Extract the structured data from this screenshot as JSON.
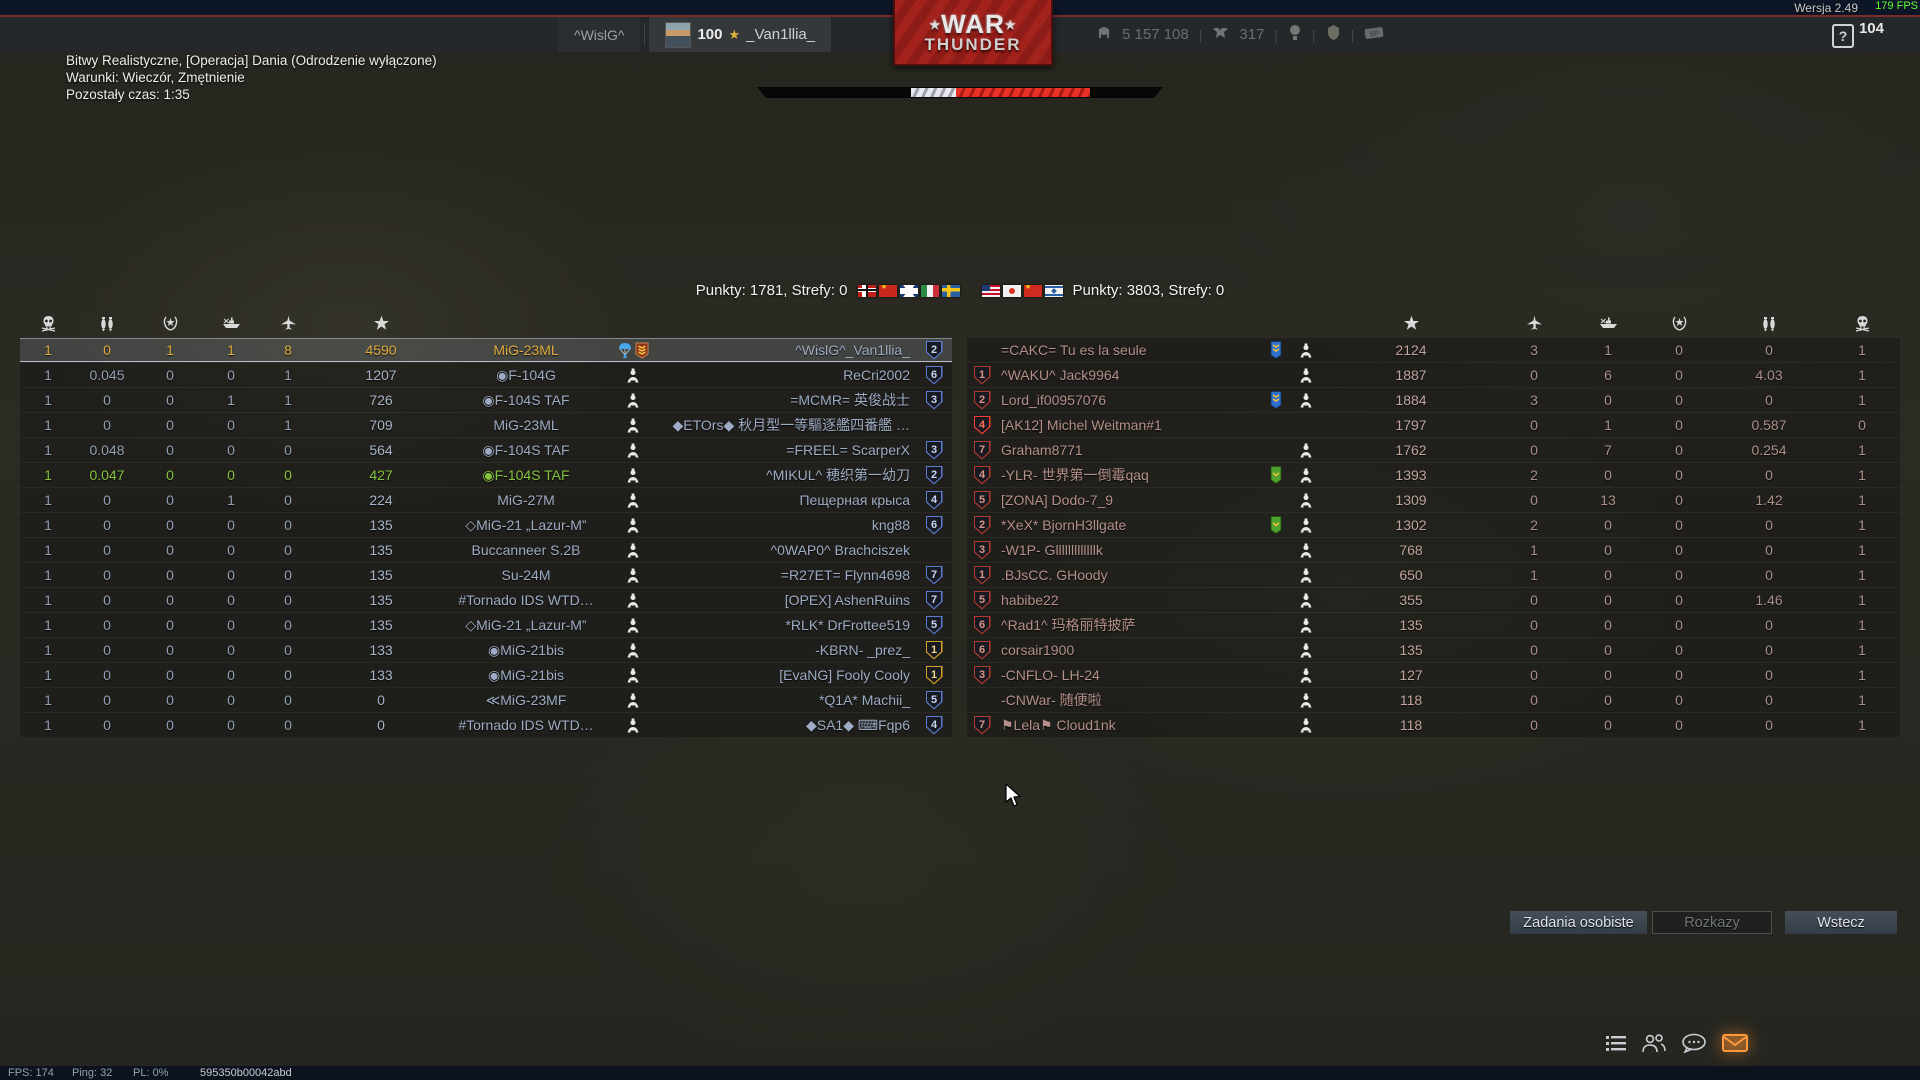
{
  "topbar": {
    "version_label": "Wersja 2.49",
    "fps_overlay": "179 FPS",
    "counter": "104",
    "clan_tab": "^WislG^",
    "player_level": "100",
    "player_name": "_Van1llia_",
    "silver_lions": "5 157 108",
    "golden_eagles": "317",
    "help_label": "?"
  },
  "logo": {
    "war": "WAR",
    "thunder": "THUNDER"
  },
  "mission": {
    "title": "Bitwy Realistyczne, [Operacja] Dania (Odrodzenie wyłączone)",
    "conditions": "Warunki: Wieczór, Zmętnienie",
    "time_left": "Pozostały czas: 1:35"
  },
  "score_line": {
    "left_score": "Punkty: 1781, Strefy: 0",
    "right_score": "Punkty: 3803, Strefy: 0",
    "left_flags": [
      "germany",
      "ussr",
      "uk",
      "italy",
      "sweden"
    ],
    "right_flags": [
      "usa",
      "japan",
      "china",
      "israel"
    ]
  },
  "battle_bar": {
    "white_from_pct": 38,
    "white_width_pct": 11,
    "red_from_pct": 49,
    "red_width_pct": 33
  },
  "left_table": {
    "columns": [
      "deaths",
      "bomb-tonnage",
      "ground-kills",
      "naval-kills",
      "air-kills",
      "score",
      "vehicle",
      "status",
      "player",
      "rank"
    ],
    "rows": [
      {
        "deaths": "1",
        "bombs": "0",
        "ground": "1",
        "naval": "1",
        "air": "8",
        "score": "4590",
        "vehicle": "MiG-23ML",
        "status": "parachute-medal",
        "name": "^WislG^_Van1llia_",
        "rank": "2",
        "rank_style": "blue",
        "row_style": "self"
      },
      {
        "deaths": "1",
        "bombs": "0.045",
        "ground": "0",
        "naval": "0",
        "air": "1",
        "score": "1207",
        "vehicle": "◉F-104G",
        "status": "crew",
        "name": "ReCri2002",
        "rank": "6",
        "rank_style": "blue",
        "row_style": "ally"
      },
      {
        "deaths": "1",
        "bombs": "0",
        "ground": "0",
        "naval": "1",
        "air": "1",
        "score": "726",
        "vehicle": "◉F-104S TAF",
        "status": "crew",
        "name": "=MCMR= 英俊战士",
        "rank": "3",
        "rank_style": "blue",
        "row_style": "ally"
      },
      {
        "deaths": "1",
        "bombs": "0",
        "ground": "0",
        "naval": "0",
        "air": "1",
        "score": "709",
        "vehicle": "MiG-23ML",
        "status": "crew",
        "name": "◆ETOrs◆ 秋月型一等驅逐艦四番艦 …",
        "rank": "",
        "rank_style": "",
        "row_style": "ally"
      },
      {
        "deaths": "1",
        "bombs": "0.048",
        "ground": "0",
        "naval": "0",
        "air": "0",
        "score": "564",
        "vehicle": "◉F-104S TAF",
        "status": "crew",
        "name": "=FREEL= ScarperX",
        "rank": "3",
        "rank_style": "blue",
        "row_style": "ally"
      },
      {
        "deaths": "1",
        "bombs": "0.047",
        "ground": "0",
        "naval": "0",
        "air": "0",
        "score": "427",
        "vehicle": "◉F-104S TAF",
        "status": "crew",
        "name": "^MIKUL^ 穂织第一幼刀",
        "rank": "2",
        "rank_style": "blue",
        "row_style": "squad"
      },
      {
        "deaths": "1",
        "bombs": "0",
        "ground": "0",
        "naval": "1",
        "air": "0",
        "score": "224",
        "vehicle": "MiG-27M",
        "status": "crew",
        "name": "Пещерная крыса",
        "rank": "4",
        "rank_style": "blue",
        "row_style": "ally"
      },
      {
        "deaths": "1",
        "bombs": "0",
        "ground": "0",
        "naval": "0",
        "air": "0",
        "score": "135",
        "vehicle": "◇MiG-21 „Lazur-M”",
        "status": "crew",
        "name": "kng88",
        "rank": "6",
        "rank_style": "blue",
        "row_style": "ally"
      },
      {
        "deaths": "1",
        "bombs": "0",
        "ground": "0",
        "naval": "0",
        "air": "0",
        "score": "135",
        "vehicle": "Buccanneer S.2B",
        "status": "crew",
        "name": "^0WAP0^ Brachciszek",
        "rank": "",
        "rank_style": "",
        "row_style": "ally"
      },
      {
        "deaths": "1",
        "bombs": "0",
        "ground": "0",
        "naval": "0",
        "air": "0",
        "score": "135",
        "vehicle": "Su-24M",
        "status": "crew",
        "name": "=R27ET= Flynn4698",
        "rank": "7",
        "rank_style": "blue",
        "row_style": "ally"
      },
      {
        "deaths": "1",
        "bombs": "0",
        "ground": "0",
        "naval": "0",
        "air": "0",
        "score": "135",
        "vehicle": "#Tornado IDS WTD…",
        "status": "crew",
        "name": "[OPEX] AshenRuins",
        "rank": "7",
        "rank_style": "blue",
        "row_style": "ally"
      },
      {
        "deaths": "1",
        "bombs": "0",
        "ground": "0",
        "naval": "0",
        "air": "0",
        "score": "135",
        "vehicle": "◇MiG-21 „Lazur-M”",
        "status": "crew",
        "name": "*RLK* DrFrottee519",
        "rank": "5",
        "rank_style": "blue",
        "row_style": "ally"
      },
      {
        "deaths": "1",
        "bombs": "0",
        "ground": "0",
        "naval": "0",
        "air": "0",
        "score": "133",
        "vehicle": "◉MiG-21bis",
        "status": "crew",
        "name": "-KBRN- _prez_",
        "rank": "1",
        "rank_style": "gold",
        "row_style": "ally"
      },
      {
        "deaths": "1",
        "bombs": "0",
        "ground": "0",
        "naval": "0",
        "air": "0",
        "score": "133",
        "vehicle": "◉MiG-21bis",
        "status": "crew",
        "name": "[EvaNG] Fooly Cooly",
        "rank": "1",
        "rank_style": "gold",
        "row_style": "ally"
      },
      {
        "deaths": "1",
        "bombs": "0",
        "ground": "0",
        "naval": "0",
        "air": "0",
        "score": "0",
        "vehicle": "≪MiG-23MF",
        "status": "crew",
        "name": "*Q1A* Machii_",
        "rank": "5",
        "rank_style": "blue",
        "row_style": "ally"
      },
      {
        "deaths": "1",
        "bombs": "0",
        "ground": "0",
        "naval": "0",
        "air": "0",
        "score": "0",
        "vehicle": "#Tornado IDS WTD…",
        "status": "crew",
        "name": "◆SA1◆ ⌨Fqp6",
        "rank": "4",
        "rank_style": "blue",
        "row_style": "ally"
      }
    ]
  },
  "right_table": {
    "columns": [
      "rank",
      "player",
      "banner",
      "status",
      "score",
      "air-kills",
      "naval-kills",
      "ground-kills",
      "bomb-tonnage",
      "deaths"
    ],
    "rows": [
      {
        "rank": "",
        "rank_style": "",
        "name": "=CAKC= Tu es la seule",
        "banner": "blue",
        "status": "crew",
        "score": "2124",
        "air": "3",
        "naval": "1",
        "ground": "0",
        "bombs": "0",
        "deaths": "1",
        "row_style": "enemy"
      },
      {
        "rank": "1",
        "rank_style": "red",
        "name": "^WAKU^ Jack9964",
        "banner": "",
        "status": "crew",
        "score": "1887",
        "air": "0",
        "naval": "6",
        "ground": "0",
        "bombs": "4.03",
        "deaths": "1",
        "row_style": "enemy"
      },
      {
        "rank": "2",
        "rank_style": "red",
        "name": "Lord_if00957076",
        "banner": "blue",
        "status": "crew",
        "score": "1884",
        "air": "3",
        "naval": "0",
        "ground": "0",
        "bombs": "0",
        "deaths": "1",
        "row_style": "enemy"
      },
      {
        "rank": "4",
        "rank_style": "red",
        "name": "[AK12] Michel Weitman#1",
        "banner": "",
        "status": "",
        "score": "1797",
        "air": "0",
        "naval": "1",
        "ground": "0",
        "bombs": "0.587",
        "deaths": "0",
        "row_style": "killer"
      },
      {
        "rank": "7",
        "rank_style": "red",
        "name": "Graham8771",
        "banner": "",
        "status": "crew",
        "score": "1762",
        "air": "0",
        "naval": "7",
        "ground": "0",
        "bombs": "0.254",
        "deaths": "1",
        "row_style": "enemy"
      },
      {
        "rank": "4",
        "rank_style": "red",
        "name": "-YLR- 世界第一倒霉qaq",
        "banner": "green",
        "status": "crew",
        "score": "1393",
        "air": "2",
        "naval": "0",
        "ground": "0",
        "bombs": "0",
        "deaths": "1",
        "row_style": "enemy"
      },
      {
        "rank": "5",
        "rank_style": "red",
        "name": "[ZONA] Dodo-7_9",
        "banner": "",
        "status": "crew",
        "score": "1309",
        "air": "0",
        "naval": "13",
        "ground": "0",
        "bombs": "1.42",
        "deaths": "1",
        "row_style": "enemy"
      },
      {
        "rank": "2",
        "rank_style": "red",
        "name": "*XeX* BjornH3llgate",
        "banner": "green",
        "status": "crew",
        "score": "1302",
        "air": "2",
        "naval": "0",
        "ground": "0",
        "bombs": "0",
        "deaths": "1",
        "row_style": "enemy"
      },
      {
        "rank": "3",
        "rank_style": "red",
        "name": "-W1P- Glllllllllllllk",
        "banner": "",
        "status": "crew",
        "score": "768",
        "air": "1",
        "naval": "0",
        "ground": "0",
        "bombs": "0",
        "deaths": "1",
        "row_style": "enemy"
      },
      {
        "rank": "1",
        "rank_style": "red",
        "name": ".BJsCC. GHoody",
        "banner": "",
        "status": "crew",
        "score": "650",
        "air": "1",
        "naval": "0",
        "ground": "0",
        "bombs": "0",
        "deaths": "1",
        "row_style": "enemy"
      },
      {
        "rank": "5",
        "rank_style": "red",
        "name": "habibe22",
        "banner": "",
        "status": "crew",
        "score": "355",
        "air": "0",
        "naval": "0",
        "ground": "0",
        "bombs": "1.46",
        "deaths": "1",
        "row_style": "enemy"
      },
      {
        "rank": "6",
        "rank_style": "red",
        "name": "^Rad1^ 玛格丽特披萨",
        "banner": "",
        "status": "crew",
        "score": "135",
        "air": "0",
        "naval": "0",
        "ground": "0",
        "bombs": "0",
        "deaths": "1",
        "row_style": "enemy"
      },
      {
        "rank": "6",
        "rank_style": "red",
        "name": "corsair1900",
        "banner": "",
        "status": "crew",
        "score": "135",
        "air": "0",
        "naval": "0",
        "ground": "0",
        "bombs": "0",
        "deaths": "1",
        "row_style": "enemy"
      },
      {
        "rank": "3",
        "rank_style": "red",
        "name": "-CNFLO- LH-24",
        "banner": "",
        "status": "crew",
        "score": "127",
        "air": "0",
        "naval": "0",
        "ground": "0",
        "bombs": "0",
        "deaths": "1",
        "row_style": "enemy"
      },
      {
        "rank": "",
        "rank_style": "",
        "name": "-CNWar- 随便啦",
        "banner": "",
        "status": "crew",
        "score": "118",
        "air": "0",
        "naval": "0",
        "ground": "0",
        "bombs": "0",
        "deaths": "1",
        "row_style": "enemy"
      },
      {
        "rank": "7",
        "rank_style": "red",
        "name": "⚑Lela⚑ Cloud1nk",
        "banner": "",
        "status": "crew",
        "score": "118",
        "air": "0",
        "naval": "0",
        "ground": "0",
        "bombs": "0",
        "deaths": "1",
        "row_style": "enemy"
      }
    ]
  },
  "buttons": {
    "personal_tasks": "Zadania osobiste",
    "orders": "Rozkazy",
    "back": "Wstecz"
  },
  "statusbar": {
    "fps": "FPS: 174",
    "ping": "Ping: 32",
    "packet_loss": "PL: 0%",
    "session_id": "595350b00042abd"
  },
  "colors": {
    "self_gold": "#e0ab3e",
    "squad_green": "#85c33d",
    "ally_steel": "#9dacc4",
    "enemy_salmon": "#b59089",
    "killer_red": "#ff3c30",
    "accent_red": "#a3221c",
    "envelope_orange": "#ff9a3c"
  }
}
